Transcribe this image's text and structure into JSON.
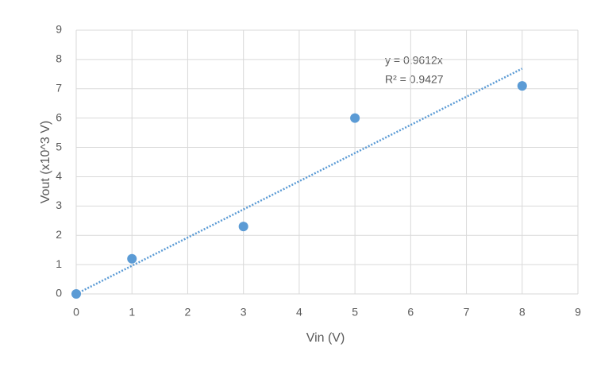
{
  "chart_data": {
    "type": "scatter",
    "x_label": "Vin (V)",
    "y_label": "Vout (x10^3 V)",
    "series": [
      {
        "color": "#5b9bd5",
        "x": [
          0,
          1,
          3,
          5,
          8
        ],
        "values": [
          0,
          1.2,
          2.3,
          6.0,
          7.1
        ]
      }
    ],
    "trendline": {
      "slope": 0.9612,
      "color": "#5b9bd5",
      "equation": "y = 0.9612x",
      "r_squared_label": "R² = 0.9427"
    },
    "xlim": [
      0,
      9
    ],
    "xticks": [
      0,
      1,
      2,
      3,
      4,
      5,
      6,
      7,
      8,
      9
    ],
    "ylim": [
      0,
      9
    ],
    "yticks": [
      0,
      1,
      2,
      3,
      4,
      5,
      6,
      7,
      8,
      9
    ],
    "grid": true
  }
}
